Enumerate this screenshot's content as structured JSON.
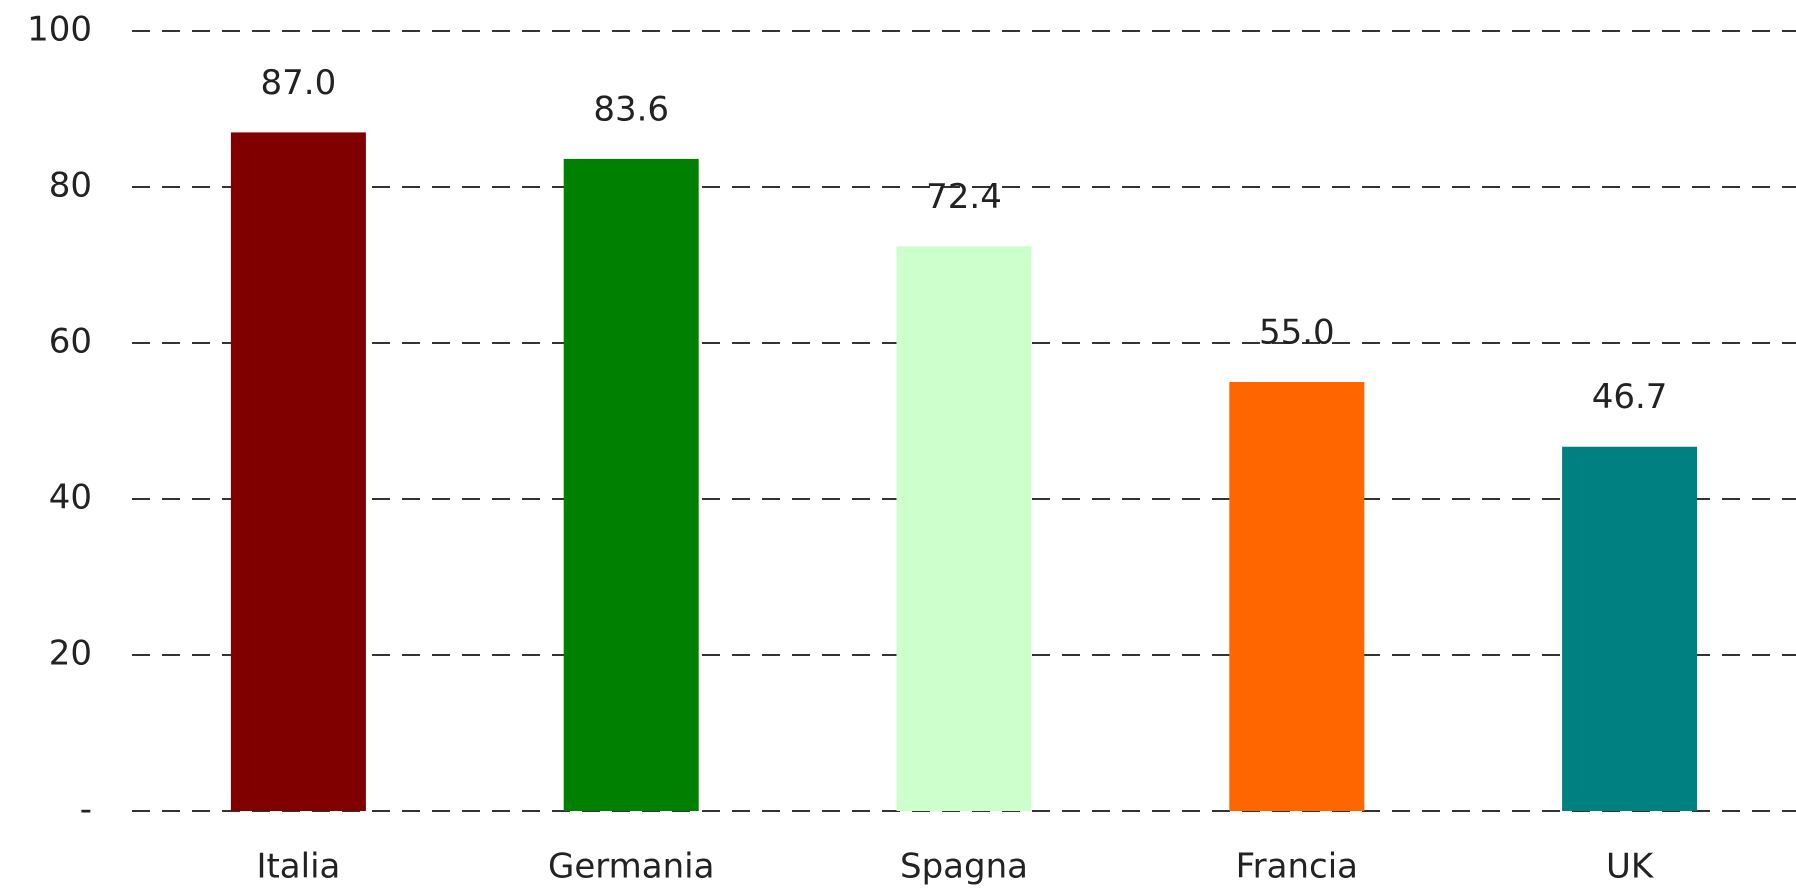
{
  "chart_data": {
    "type": "bar",
    "categories": [
      "Italia",
      "Germania",
      "Spagna",
      "Francia",
      "UK"
    ],
    "values": [
      87.0,
      83.6,
      72.4,
      55.0,
      46.7
    ],
    "value_labels": [
      "87.0",
      "83.6",
      "72.4",
      "55.0",
      "46.7"
    ],
    "colors": [
      "#800000",
      "#008000",
      "#ccffcc",
      "#ff6600",
      "#008080"
    ],
    "ylim": [
      0,
      100
    ],
    "yticks": [
      {
        "value": 0,
        "label": "-"
      },
      20,
      40,
      60,
      80,
      100
    ],
    "grid": true
  }
}
